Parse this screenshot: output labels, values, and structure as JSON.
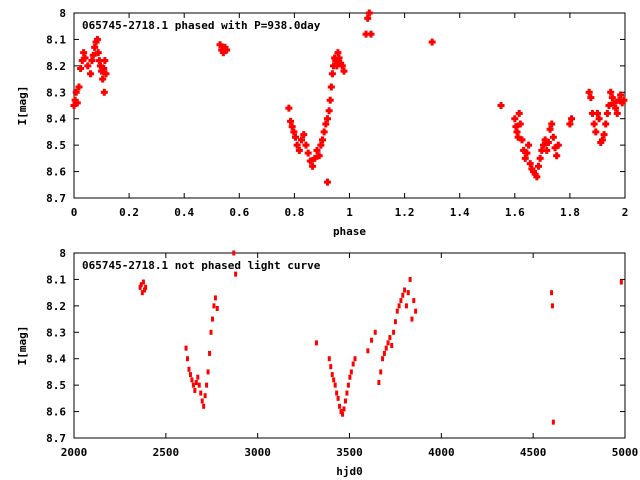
{
  "colors": {
    "points": "#ff0000",
    "frame": "#000000",
    "background": "#ffffff"
  },
  "chart_data": [
    {
      "type": "scatter",
      "title": "065745-2718.1 phased with P=938.0day",
      "xlabel": "phase",
      "ylabel": "I[mag]",
      "xlim": [
        0,
        2
      ],
      "ylim": [
        8.7,
        8
      ],
      "y_inverted": true,
      "xticks": [
        0,
        0.2,
        0.4,
        0.6,
        0.8,
        1,
        1.2,
        1.4,
        1.6,
        1.8,
        2
      ],
      "xtick_labels": [
        "0",
        "0.2",
        "0.4",
        "0.6",
        "0.8",
        "1",
        "1.2",
        "1.4",
        "1.6",
        "1.8",
        "2"
      ],
      "yticks": [
        8,
        8.1,
        8.2,
        8.3,
        8.4,
        8.5,
        8.6,
        8.7
      ],
      "ytick_labels": [
        "8",
        "8.1",
        "8.2",
        "8.3",
        "8.4",
        "8.5",
        "8.6",
        "8.7"
      ],
      "grid": false,
      "legend": "none",
      "marker": "plus",
      "x": [
        0.0,
        0.004,
        0.008,
        0.012,
        0.018,
        0.024,
        0.03,
        0.035,
        0.04,
        0.05,
        0.06,
        0.065,
        0.07,
        0.075,
        0.08,
        0.085,
        0.088,
        0.092,
        0.096,
        0.1,
        0.104,
        0.108,
        0.112,
        0.116,
        0.11,
        0.53,
        0.536,
        0.542,
        0.548,
        0.554,
        0.78,
        0.786,
        0.792,
        0.798,
        0.804,
        0.81,
        0.818,
        0.826,
        0.834,
        0.842,
        0.85,
        0.858,
        0.866,
        0.874,
        0.882,
        0.89,
        0.896,
        0.902,
        0.908,
        0.914,
        0.92,
        0.926,
        0.93,
        0.934,
        0.938,
        0.942,
        0.946,
        0.95,
        0.954,
        0.958,
        0.962,
        0.968,
        0.974,
        0.98,
        0.92,
        1.06,
        1.066,
        1.072,
        1.078,
        1.3,
        1.55,
        1.6,
        1.604,
        1.608,
        1.612,
        1.616,
        1.62,
        1.626,
        1.632,
        1.638,
        1.644,
        1.65,
        1.656,
        1.662,
        1.668,
        1.674,
        1.68,
        1.686,
        1.692,
        1.698,
        1.704,
        1.71,
        1.716,
        1.722,
        1.728,
        1.734,
        1.74,
        1.746,
        1.752,
        1.758,
        1.8,
        1.806,
        1.87,
        1.876,
        1.882,
        1.888,
        1.894,
        1.9,
        1.906,
        1.912,
        1.918,
        1.924,
        1.93,
        1.936,
        1.942,
        1.948,
        1.954,
        1.96,
        1.966,
        1.972,
        1.978,
        1.984,
        1.99,
        1.996
      ],
      "y": [
        8.35,
        8.33,
        8.3,
        8.34,
        8.28,
        8.21,
        8.18,
        8.15,
        8.17,
        8.2,
        8.23,
        8.18,
        8.16,
        8.13,
        8.11,
        8.1,
        8.15,
        8.18,
        8.2,
        8.22,
        8.25,
        8.21,
        8.18,
        8.23,
        8.3,
        8.12,
        8.14,
        8.15,
        8.13,
        8.14,
        8.36,
        8.41,
        8.43,
        8.45,
        8.47,
        8.5,
        8.52,
        8.48,
        8.46,
        8.5,
        8.53,
        8.56,
        8.58,
        8.55,
        8.52,
        8.54,
        8.5,
        8.48,
        8.45,
        8.42,
        8.4,
        8.37,
        8.33,
        8.28,
        8.23,
        8.2,
        8.17,
        8.18,
        8.2,
        8.15,
        8.17,
        8.19,
        8.2,
        8.22,
        8.64,
        8.08,
        8.02,
        8.0,
        8.08,
        8.11,
        8.35,
        8.4,
        8.43,
        8.45,
        8.47,
        8.38,
        8.42,
        8.48,
        8.52,
        8.55,
        8.53,
        8.5,
        8.57,
        8.59,
        8.6,
        8.61,
        8.62,
        8.58,
        8.55,
        8.52,
        8.5,
        8.48,
        8.52,
        8.49,
        8.44,
        8.42,
        8.47,
        8.51,
        8.54,
        8.5,
        8.42,
        8.4,
        8.3,
        8.32,
        8.38,
        8.42,
        8.45,
        8.38,
        8.4,
        8.49,
        8.48,
        8.46,
        8.42,
        8.38,
        8.35,
        8.3,
        8.32,
        8.34,
        8.36,
        8.38,
        8.33,
        8.31,
        8.34,
        8.33
      ]
    },
    {
      "type": "scatter",
      "title": "065745-2718.1 not phased light curve",
      "xlabel": "hjd0",
      "ylabel": "I[mag]",
      "xlim": [
        2000,
        5000
      ],
      "ylim": [
        8.7,
        8
      ],
      "y_inverted": true,
      "xticks": [
        2000,
        2500,
        3000,
        3500,
        4000,
        4500,
        5000
      ],
      "xtick_labels": [
        "2000",
        "2500",
        "3000",
        "3500",
        "4000",
        "4500",
        "5000"
      ],
      "yticks": [
        8,
        8.1,
        8.2,
        8.3,
        8.4,
        8.5,
        8.6,
        8.7
      ],
      "ytick_labels": [
        "8",
        "8.1",
        "8.2",
        "8.3",
        "8.4",
        "8.5",
        "8.6",
        "8.7"
      ],
      "grid": false,
      "legend": "none",
      "marker": "dot",
      "x": [
        2360,
        2366,
        2372,
        2378,
        2384,
        2390,
        2610,
        2618,
        2626,
        2634,
        2642,
        2650,
        2658,
        2666,
        2674,
        2682,
        2690,
        2698,
        2706,
        2714,
        2722,
        2730,
        2738,
        2746,
        2754,
        2762,
        2770,
        2780,
        2870,
        2880,
        3320,
        3390,
        3398,
        3406,
        3414,
        3422,
        3430,
        3438,
        3446,
        3454,
        3462,
        3470,
        3478,
        3486,
        3494,
        3502,
        3510,
        3520,
        3530,
        3600,
        3620,
        3640,
        3660,
        3670,
        3680,
        3690,
        3700,
        3710,
        3720,
        3730,
        3740,
        3750,
        3760,
        3770,
        3780,
        3790,
        3800,
        3810,
        3820,
        3830,
        3840,
        3850,
        3860,
        4600,
        4605,
        4610,
        4980
      ],
      "y": [
        8.13,
        8.12,
        8.15,
        8.11,
        8.14,
        8.13,
        8.36,
        8.4,
        8.44,
        8.46,
        8.48,
        8.5,
        8.52,
        8.49,
        8.47,
        8.5,
        8.53,
        8.56,
        8.58,
        8.54,
        8.5,
        8.45,
        8.38,
        8.3,
        8.25,
        8.2,
        8.17,
        8.21,
        8.0,
        8.08,
        8.34,
        8.4,
        8.43,
        8.46,
        8.48,
        8.5,
        8.53,
        8.55,
        8.58,
        8.6,
        8.61,
        8.59,
        8.56,
        8.53,
        8.5,
        8.47,
        8.45,
        8.42,
        8.4,
        8.37,
        8.33,
        8.3,
        8.49,
        8.45,
        8.4,
        8.38,
        8.36,
        8.34,
        8.32,
        8.35,
        8.3,
        8.26,
        8.22,
        8.2,
        8.18,
        8.16,
        8.14,
        8.2,
        8.15,
        8.1,
        8.25,
        8.18,
        8.22,
        8.15,
        8.2,
        8.64,
        8.11
      ]
    }
  ]
}
